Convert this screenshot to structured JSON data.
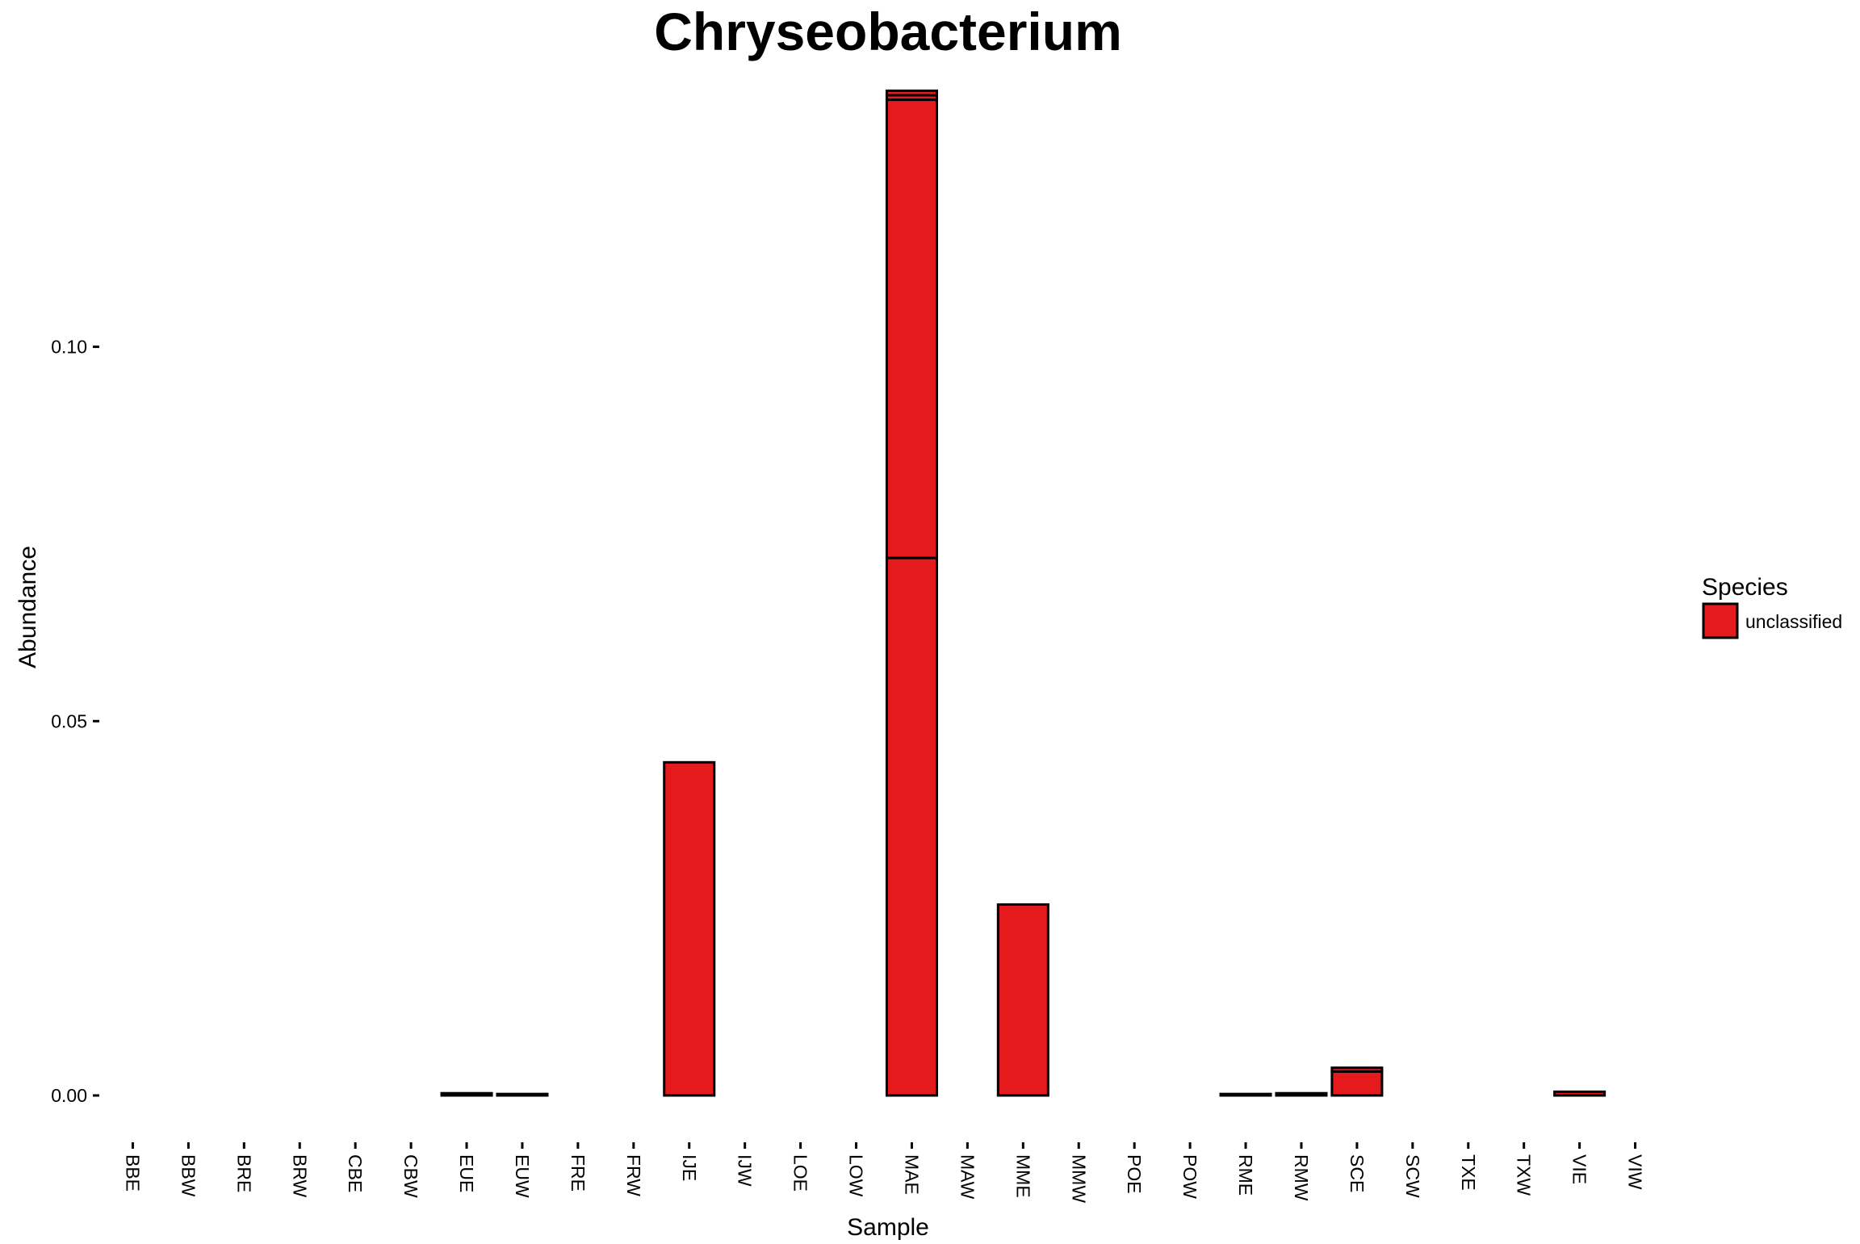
{
  "chart_data": {
    "type": "bar",
    "stacked": true,
    "title": "Chryseobacterium",
    "xlabel": "Sample",
    "ylabel": "Abundance",
    "ylim": [
      0,
      0.135
    ],
    "yticks": [
      "0.00",
      "0.05",
      "0.10"
    ],
    "ytick_values": [
      0,
      0.05,
      0.1
    ],
    "grid": false,
    "legend": {
      "title": "Species",
      "position": "right",
      "entries": [
        "unclassified"
      ]
    },
    "colors": {
      "unclassified": "#e41a1c",
      "outline": "#000000"
    },
    "categories": [
      "BBE",
      "BBW",
      "BRE",
      "BRW",
      "CBE",
      "CBW",
      "EUE",
      "EUW",
      "FRE",
      "FRW",
      "IJE",
      "IJW",
      "LOE",
      "LOW",
      "MAE",
      "MAW",
      "MME",
      "MMW",
      "POE",
      "POW",
      "RME",
      "RMW",
      "SCE",
      "SCW",
      "TXE",
      "TXW",
      "VIE",
      "VIW"
    ],
    "segments": [
      [
        0
      ],
      [
        0
      ],
      [
        0
      ],
      [
        0
      ],
      [
        0
      ],
      [
        0
      ],
      [
        0.0003
      ],
      [
        0.0002
      ],
      [
        0
      ],
      [
        0
      ],
      [
        0.0445
      ],
      [
        0
      ],
      [
        0
      ],
      [
        0
      ],
      [
        0.0718,
        0.0612,
        0.0006,
        0.0006
      ],
      [
        0
      ],
      [
        0.0255
      ],
      [
        0
      ],
      [
        0
      ],
      [
        0
      ],
      [
        0.0002
      ],
      [
        0.0003
      ],
      [
        0.0032,
        0.0005
      ],
      [
        0
      ],
      [
        0
      ],
      [
        0
      ],
      [
        0.0005
      ],
      [
        0
      ]
    ],
    "series": [
      {
        "name": "unclassified"
      }
    ]
  }
}
